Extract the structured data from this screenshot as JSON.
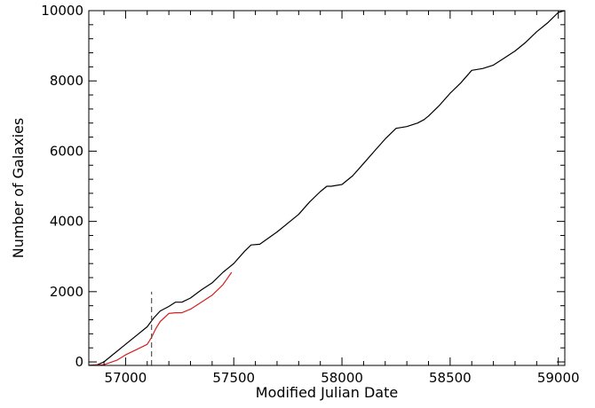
{
  "chart_data": {
    "type": "line",
    "title": "",
    "xlabel": "Modified Julian Date",
    "ylabel": "Number of Galaxies",
    "xlim": [
      56830,
      59030
    ],
    "ylim": [
      -100,
      10000
    ],
    "x_ticks": [
      57000,
      57500,
      58000,
      58500,
      59000
    ],
    "x_tick_labels": [
      "57000",
      "57500",
      "58000",
      "58500",
      "59000"
    ],
    "y_ticks": [
      0,
      2000,
      4000,
      6000,
      8000,
      10000
    ],
    "y_tick_labels": [
      "0",
      "2000",
      "4000",
      "6000",
      "8000",
      "10000"
    ],
    "grid": false,
    "series": [
      {
        "color": "#000000",
        "line_style": "solid",
        "x": [
          56830,
          56870,
          56900,
          56950,
          57000,
          57050,
          57100,
          57130,
          57160,
          57200,
          57230,
          57260,
          57300,
          57350,
          57400,
          57450,
          57500,
          57550,
          57580,
          57620,
          57700,
          57800,
          57850,
          57900,
          57930,
          57950,
          58000,
          58050,
          58100,
          58150,
          58200,
          58250,
          58300,
          58350,
          58380,
          58400,
          58450,
          58500,
          58550,
          58600,
          58650,
          58700,
          58750,
          58800,
          58850,
          58900,
          58950,
          59000,
          59030
        ],
        "values": [
          -100,
          -80,
          0,
          250,
          500,
          750,
          1000,
          1250,
          1450,
          1580,
          1700,
          1700,
          1820,
          2050,
          2250,
          2550,
          2800,
          3150,
          3330,
          3350,
          3700,
          4200,
          4550,
          4850,
          5000,
          5000,
          5050,
          5300,
          5650,
          6000,
          6350,
          6650,
          6700,
          6800,
          6900,
          7000,
          7300,
          7650,
          7950,
          8300,
          8350,
          8450,
          8650,
          8850,
          9100,
          9400,
          9650,
          9950,
          10000
        ]
      },
      {
        "color": "#d42020",
        "line_style": "solid",
        "x": [
          56830,
          56900,
          56960,
          57000,
          57050,
          57100,
          57120,
          57140,
          57160,
          57200,
          57230,
          57260,
          57300,
          57350,
          57400,
          57450,
          57490
        ],
        "values": [
          -100,
          -80,
          50,
          200,
          350,
          500,
          700,
          950,
          1150,
          1380,
          1400,
          1400,
          1500,
          1700,
          1900,
          2200,
          2550
        ]
      }
    ],
    "vline": {
      "x": 57120,
      "y_range": [
        -100,
        2000
      ],
      "color": "#555555",
      "line_style": "dashed"
    }
  }
}
